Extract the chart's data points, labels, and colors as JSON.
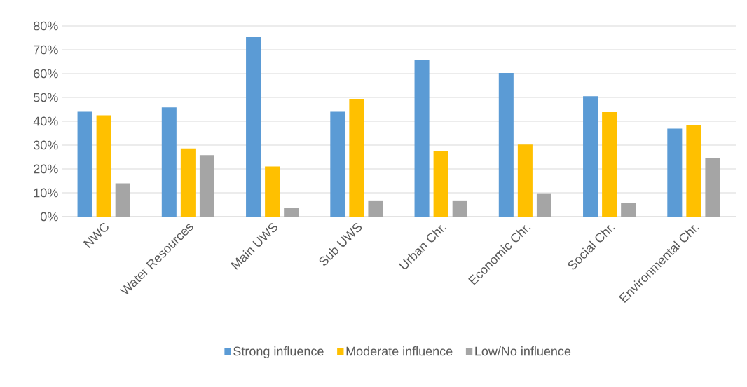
{
  "chart_data": {
    "type": "bar",
    "categories": [
      "NWC",
      "Water Resources",
      "Main UWS",
      "Sub UWS",
      "Urban Chr.",
      "Economic Chr.",
      "Social Chr.",
      "Environmental Chr."
    ],
    "series": [
      {
        "name": "Strong influence",
        "color": "#5b9bd5",
        "values": [
          44,
          45.8,
          75.3,
          44,
          65.7,
          60.3,
          50.5,
          36.9
        ]
      },
      {
        "name": "Moderate influence",
        "color": "#ffc000",
        "values": [
          42.5,
          28.6,
          21,
          49.4,
          27.4,
          30.2,
          43.8,
          38.3
        ]
      },
      {
        "name": "Low/No influence",
        "color": "#a5a5a5",
        "values": [
          14,
          25.8,
          3.8,
          6.8,
          6.8,
          9.8,
          5.7,
          24.7
        ]
      }
    ],
    "ylim": [
      0,
      80
    ],
    "yticks": [
      {
        "value": 0,
        "label": "0%"
      },
      {
        "value": 10,
        "label": "10%"
      },
      {
        "value": 20,
        "label": "20%"
      },
      {
        "value": 30,
        "label": "30%"
      },
      {
        "value": 40,
        "label": "40%"
      },
      {
        "value": 50,
        "label": "50%"
      },
      {
        "value": 60,
        "label": "60%"
      },
      {
        "value": 70,
        "label": "70%"
      },
      {
        "value": 80,
        "label": "80%"
      }
    ],
    "grid": "y",
    "legend": "bottom"
  }
}
